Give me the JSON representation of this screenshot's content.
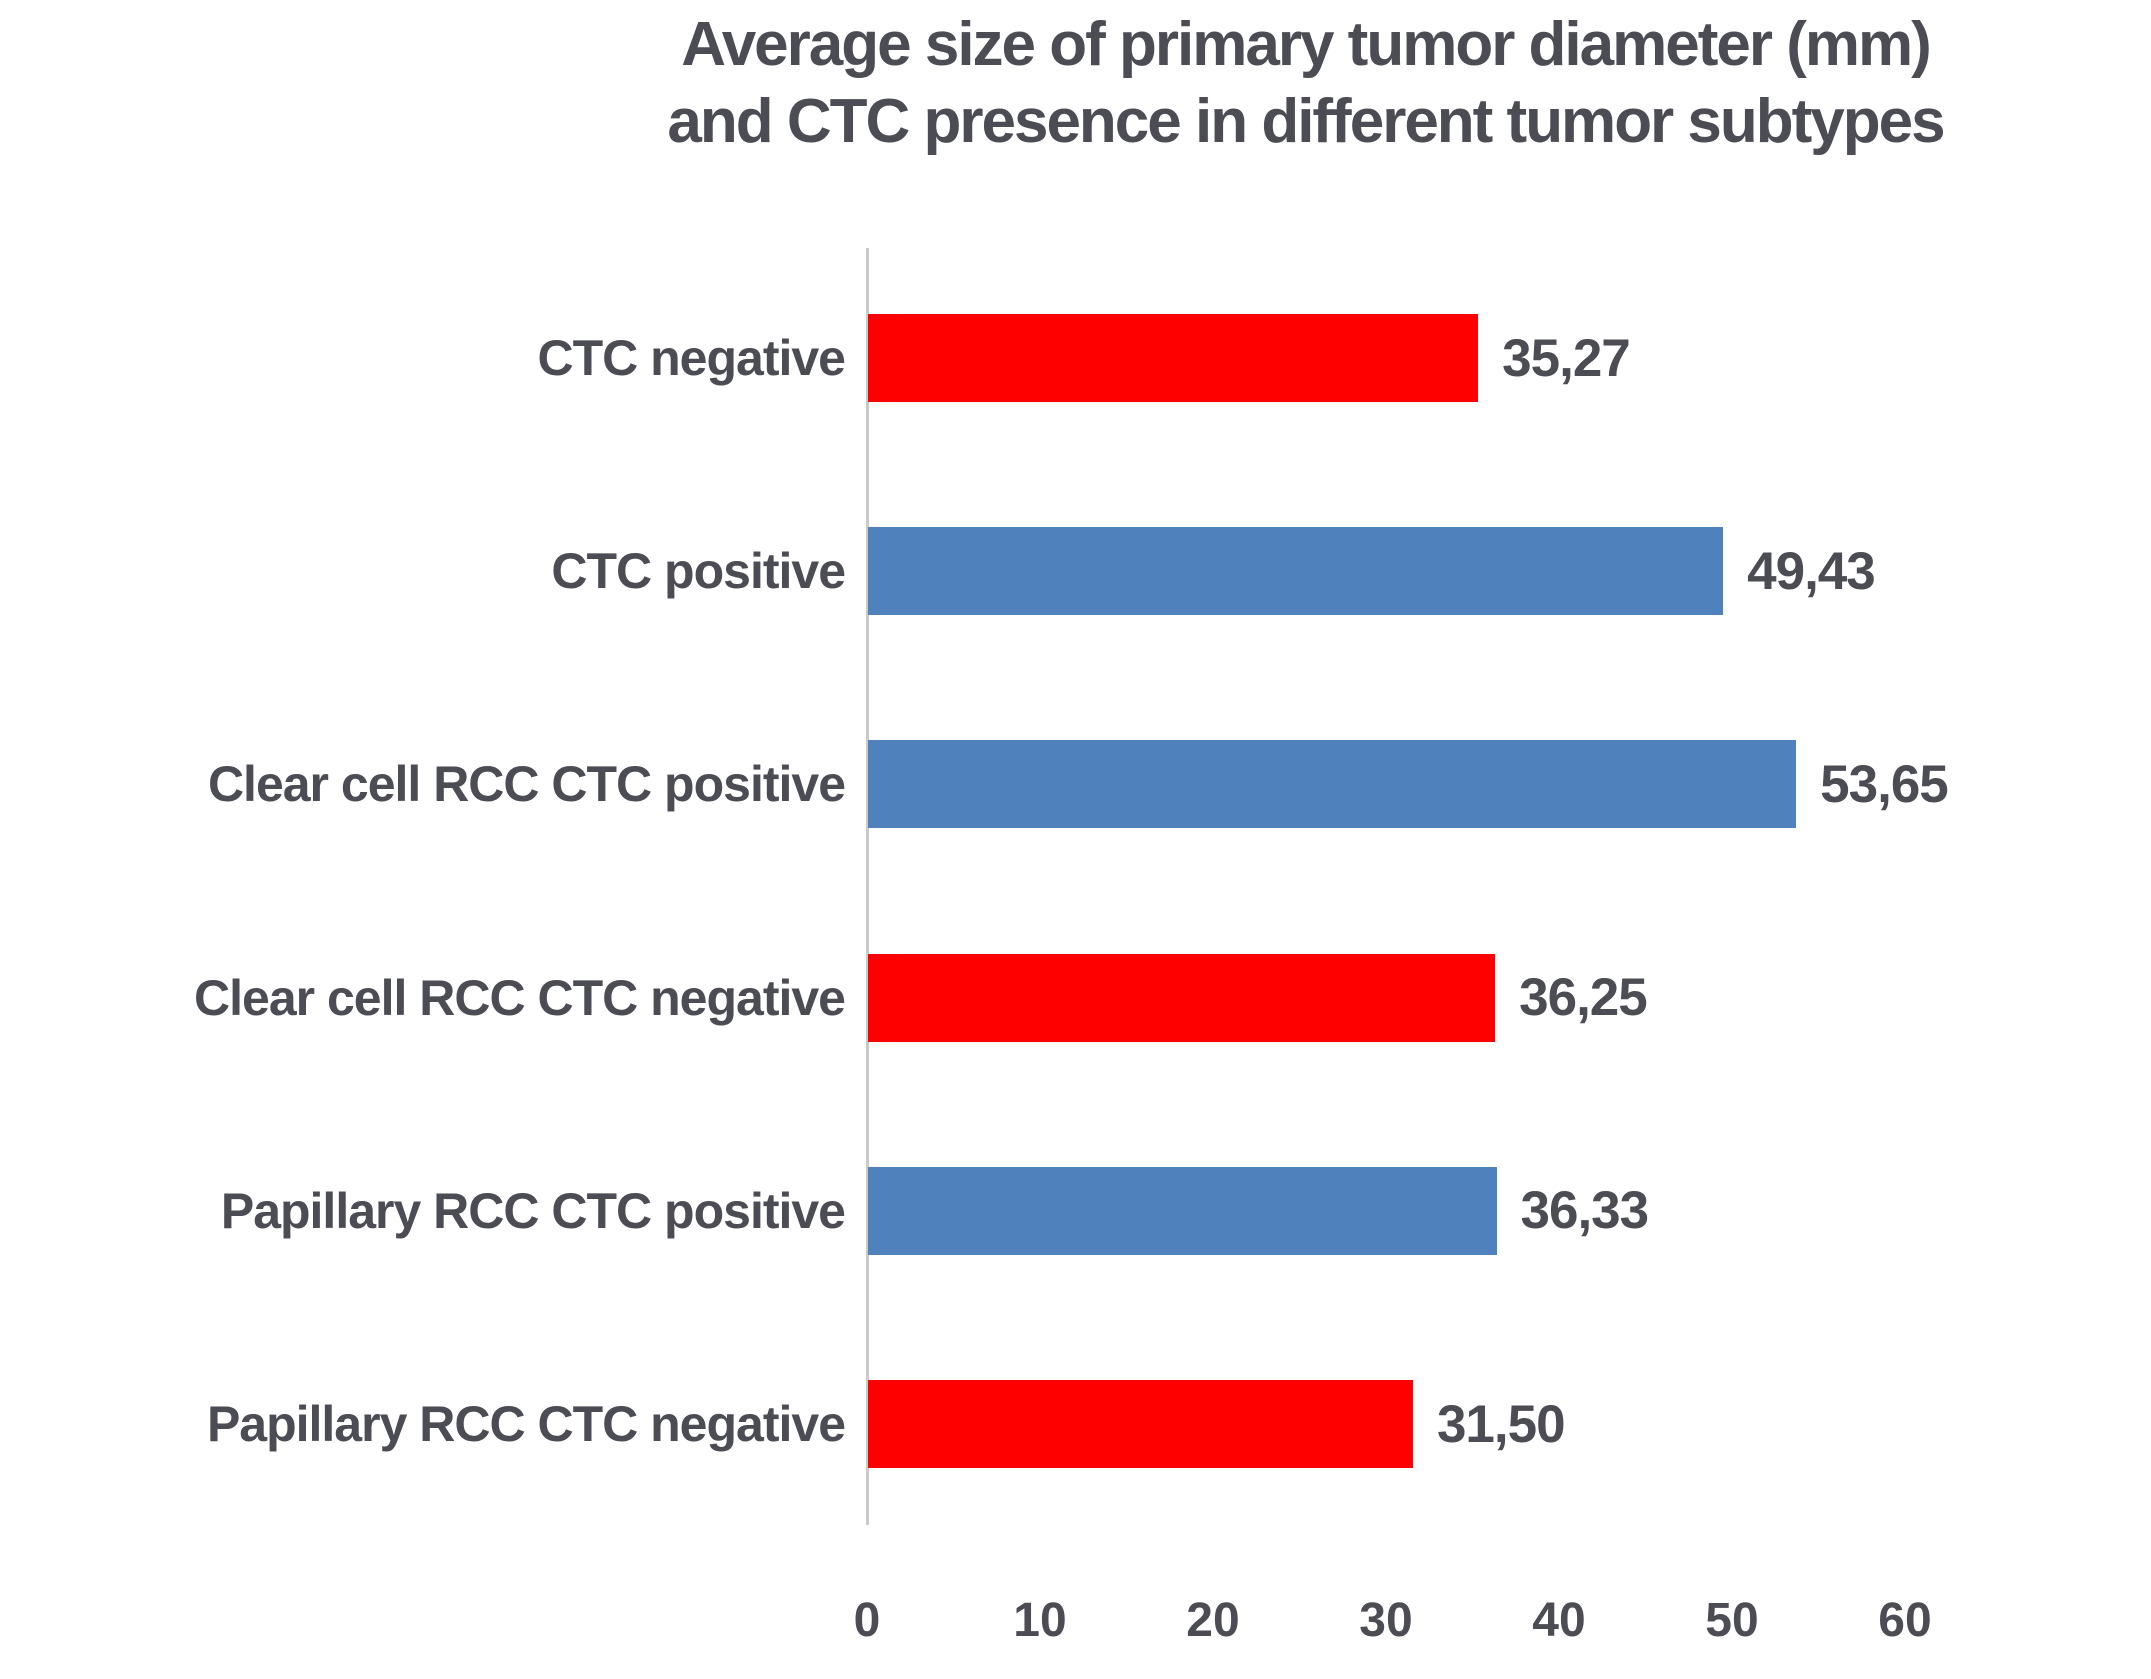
{
  "chart_data": {
    "type": "bar",
    "orientation": "horizontal",
    "title": "Average size  of primary tumor diameter (mm) and CTC presence in different tumor subtypes",
    "title_lines": [
      "Average size  of primary tumor diameter (mm)",
      "and CTC presence in different tumor subtypes"
    ],
    "categories": [
      "CTC negative",
      "CTC positive",
      "Clear cell RCC CTC positive",
      "Clear cell RCC CTC negative",
      "Papillary RCC CTC positive",
      "Papillary RCC CTC negative"
    ],
    "values": [
      35.27,
      49.43,
      53.65,
      36.25,
      36.33,
      31.5
    ],
    "value_labels": [
      "35,27",
      "49,43",
      "53,65",
      "36,25",
      "36,33",
      "31,50"
    ],
    "bar_colors": [
      "#ff0000",
      "#4f81bd",
      "#4f81bd",
      "#ff0000",
      "#4f81bd",
      "#ff0000"
    ],
    "x_ticks": [
      0,
      10,
      20,
      30,
      40,
      50,
      60
    ],
    "xlim": [
      0,
      60
    ],
    "xlabel": "",
    "ylabel": "",
    "grid": false,
    "legend": "none",
    "styles": {
      "red_bar_color": "#ff0000",
      "blue_bar_color": "#4f81bd",
      "axis_line_color": "#c9c9c9",
      "text_color": "#4b4c54"
    }
  }
}
